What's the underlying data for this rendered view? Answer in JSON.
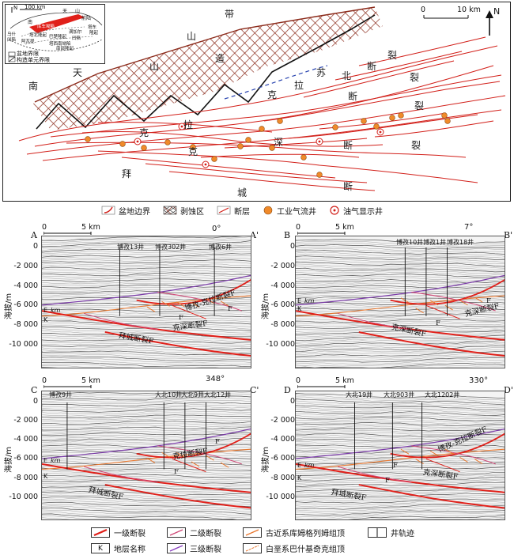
{
  "map": {
    "inset": {
      "north": "N",
      "scale": "100 km",
      "label_basin": "盆地界限",
      "label_unit": "构造单元界限",
      "places": [
        "乌什",
        "凹陷",
        "塔北隆起",
        "库车坳陷",
        "阿瓦提",
        "巴楚隆起",
        "凹陷",
        "满加尔",
        "塔西南坳陷",
        "南部隆起",
        "塔东",
        "隆起",
        "山",
        "天",
        "南",
        "前陆"
      ]
    },
    "scale_label": "10 km",
    "scale_zero": "0",
    "north": "N",
    "place_chars": [
      "带",
      "山",
      "造",
      "天",
      "山",
      "南",
      "拉",
      "苏",
      "北",
      "断",
      "裂",
      "克",
      "断",
      "裂",
      "克",
      "拉",
      "深",
      "克",
      "断",
      "裂",
      "拜",
      "城",
      "断",
      "裂"
    ]
  },
  "legend_top": [
    "盆地边界",
    "剥蚀区",
    "断层",
    "工业气流井",
    "油气显示井"
  ],
  "sections": [
    {
      "start": "A",
      "end": "A'",
      "azimuth": "0°",
      "scale": "5 km",
      "scale_zero": "0",
      "wells": [
        "博孜13井",
        "博孜302井",
        "博孜6井"
      ],
      "faults": [
        "博孜-克拉断裂F",
        "克深断裂F",
        "拜城断裂F"
      ],
      "fault_marks": [
        "F",
        "F"
      ],
      "strata": [
        "E",
        "km",
        "K"
      ]
    },
    {
      "start": "B",
      "end": "B'",
      "azimuth": "7°",
      "scale": "5 km",
      "scale_zero": "0",
      "wells": [
        "博孜10井",
        "博孜1井",
        "博孜18井"
      ],
      "faults": [
        "克深断裂F",
        "克深断裂F"
      ],
      "fault_marks": [
        "F",
        "F"
      ],
      "strata": [
        "E",
        "km",
        "K"
      ]
    },
    {
      "start": "C",
      "end": "C'",
      "azimuth": "348°",
      "scale": "5 km",
      "scale_zero": "0",
      "wells": [
        "博孜9井",
        "大北10井",
        "大北9井",
        "大北12井"
      ],
      "faults": [
        "克拉断裂F",
        "拜城断裂F"
      ],
      "fault_marks": [
        "F",
        "F"
      ],
      "strata": [
        "E",
        "km",
        "K"
      ]
    },
    {
      "start": "D",
      "end": "D'",
      "azimuth": "330°",
      "scale": "5 km",
      "scale_zero": "0",
      "wells": [
        "大北19井",
        "大北903井",
        "大北1202井"
      ],
      "faults": [
        "博孜-克拉断裂F",
        "克深断裂F",
        "拜城断裂F"
      ],
      "fault_marks": [
        "F",
        "F"
      ],
      "strata": [
        "E",
        "km",
        "K"
      ]
    }
  ],
  "y_axis": {
    "label": "海拔/m",
    "ticks": [
      "0",
      "-2 000",
      "-4 000",
      "-6 000",
      "-8 000",
      "-10 000"
    ]
  },
  "legend_bottom": {
    "items": [
      "一级断裂",
      "二级断裂",
      "古近系库姆格列姆组顶",
      "井轨迹",
      "地层名称",
      "三级断裂",
      "白垩系巴什基奇克组顶"
    ],
    "k_symbol": "K"
  },
  "colors": {
    "primary_fault": "#e0201a",
    "secondary_fault": "#d04a78",
    "tertiary_fault": "#8a3fc0",
    "paleogene_top": "#7a3aa8",
    "cretaceous_top": "#e87830",
    "gas_well": "#f08a2a",
    "map_line": "#d2201a",
    "eroded": "#8b2a1a"
  }
}
